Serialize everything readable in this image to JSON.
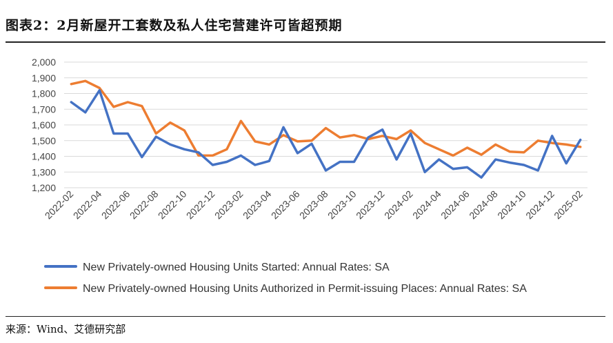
{
  "header": {
    "title": "图表2：2月新屋开工套数及私人住宅营建许可皆超预期"
  },
  "footer": {
    "source": "来源：Wind、艾德研究部"
  },
  "colors": {
    "started": "#4472C4",
    "permits": "#ED7D31",
    "grid": "#d9d9d9"
  },
  "chart_data": {
    "type": "line",
    "title": "",
    "xlabel": "",
    "ylabel": "",
    "ylim": [
      1200,
      2000
    ],
    "yticks": [
      "1,200",
      "1,300",
      "1,400",
      "1,500",
      "1,600",
      "1,700",
      "1,800",
      "1,900",
      "2,000"
    ],
    "ytick_values": [
      1200,
      1300,
      1400,
      1500,
      1600,
      1700,
      1800,
      1900,
      2000
    ],
    "x": [
      "2022-02",
      "2022-03",
      "2022-04",
      "2022-05",
      "2022-06",
      "2022-07",
      "2022-08",
      "2022-09",
      "2022-10",
      "2022-11",
      "2022-12",
      "2023-01",
      "2023-02",
      "2023-03",
      "2023-04",
      "2023-05",
      "2023-06",
      "2023-07",
      "2023-08",
      "2023-09",
      "2023-10",
      "2023-11",
      "2023-12",
      "2024-01",
      "2024-02",
      "2024-03",
      "2024-04",
      "2024-05",
      "2024-06",
      "2024-07",
      "2024-08",
      "2024-09",
      "2024-10",
      "2024-11",
      "2024-12",
      "2025-01",
      "2025-02"
    ],
    "xtick_labels": [
      "2022-02",
      "2022-04",
      "2022-06",
      "2022-08",
      "2022-10",
      "2022-12",
      "2023-02",
      "2023-04",
      "2023-06",
      "2023-08",
      "2023-10",
      "2023-12",
      "2024-02",
      "2024-04",
      "2024-06",
      "2024-08",
      "2024-10",
      "2024-12",
      "2025-02"
    ],
    "grid": true,
    "legend_position": "bottom",
    "series": [
      {
        "name": "New Privately-owned Housing Units Started: Annual Rates: SA",
        "color": "#4472C4",
        "values": [
          1745,
          1680,
          1820,
          1545,
          1545,
          1395,
          1525,
          1475,
          1445,
          1425,
          1345,
          1365,
          1405,
          1345,
          1370,
          1585,
          1420,
          1480,
          1310,
          1365,
          1365,
          1520,
          1570,
          1380,
          1545,
          1300,
          1380,
          1320,
          1330,
          1265,
          1380,
          1360,
          1345,
          1310,
          1530,
          1355,
          1505
        ]
      },
      {
        "name": "New Privately-owned Housing Units Authorized in Permit-issuing Places: Annual Rates: SA",
        "color": "#ED7D31",
        "values": [
          1860,
          1880,
          1835,
          1715,
          1745,
          1720,
          1545,
          1615,
          1565,
          1405,
          1405,
          1445,
          1625,
          1495,
          1475,
          1535,
          1495,
          1500,
          1580,
          1520,
          1535,
          1510,
          1530,
          1510,
          1565,
          1485,
          1445,
          1405,
          1455,
          1410,
          1475,
          1430,
          1425,
          1500,
          1485,
          1475,
          1460
        ]
      }
    ]
  }
}
